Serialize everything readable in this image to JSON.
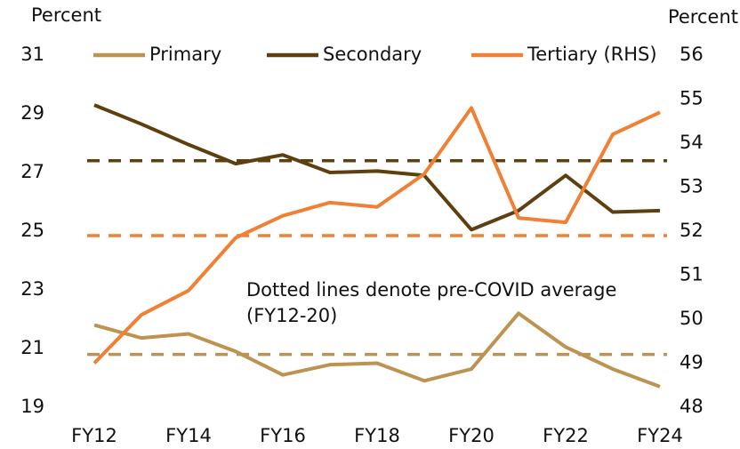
{
  "chart_data": {
    "type": "line",
    "ylabel": "Percent",
    "y2label": "Percent",
    "categories": [
      "FY12",
      null,
      "FY14",
      null,
      "FY16",
      null,
      "FY18",
      null,
      "FY20",
      null,
      "FY22",
      null,
      "FY24"
    ],
    "ylim": [
      19,
      31
    ],
    "yticks": [
      19,
      21,
      23,
      25,
      27,
      29,
      31
    ],
    "y2lim": [
      48,
      56
    ],
    "y2ticks": [
      48,
      49,
      50,
      51,
      52,
      53,
      54,
      55,
      56
    ],
    "series": [
      {
        "name": "Primary",
        "color": "#bd9351",
        "values": [
          21.8,
          21.36,
          21.5,
          20.9,
          20.1,
          20.45,
          20.5,
          19.9,
          20.3,
          22.2,
          21.05,
          20.3,
          19.7
        ],
        "average": 20.8
      },
      {
        "name": "Secondary",
        "color": "#5e3f0f",
        "values": [
          29.3,
          28.65,
          27.95,
          27.3,
          27.6,
          27.0,
          27.05,
          26.9,
          25.05,
          25.7,
          26.9,
          25.65,
          25.7
        ],
        "average": 27.4
      },
      {
        "name": "Tertiary (RHS)",
        "color": "#ef8034",
        "axis": "y2",
        "values": [
          49.0,
          50.1,
          50.65,
          51.85,
          52.35,
          52.65,
          52.55,
          53.3,
          54.8,
          52.3,
          52.2,
          54.2,
          54.7
        ],
        "average": 51.9
      }
    ],
    "annotation": [
      "Dotted lines denote pre-COVID average",
      "(FY12-20)"
    ]
  }
}
